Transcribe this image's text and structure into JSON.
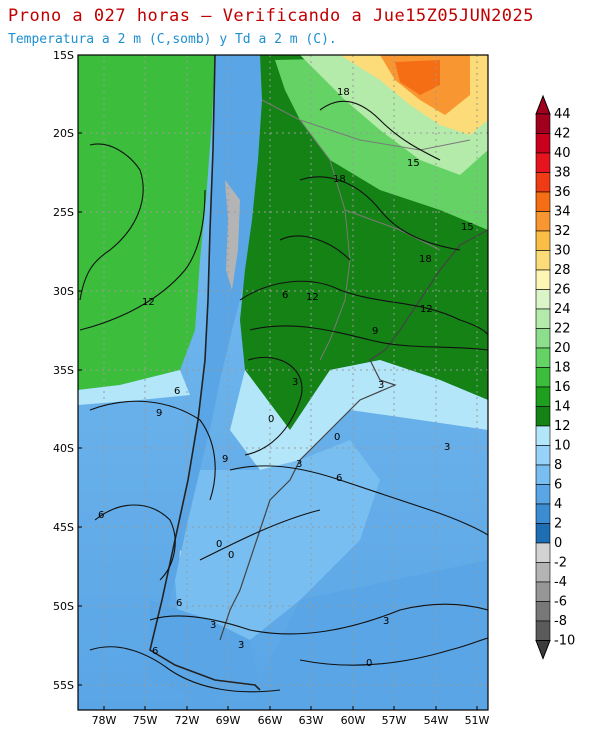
{
  "title": "Prono a 027 horas — Verificando a Jue15Z05JUN2025",
  "subtitle": "Temperatura a 2 m (C,somb) y Td a 2 m (C).",
  "lat_ticks": [
    "15S",
    "20S",
    "25S",
    "30S",
    "35S",
    "40S",
    "45S",
    "50S",
    "55S"
  ],
  "lon_ticks": [
    "78W",
    "75W",
    "72W",
    "69W",
    "66W",
    "63W",
    "60W",
    "57W",
    "54W",
    "51W"
  ],
  "colorbar": {
    "labels": [
      "44",
      "42",
      "40",
      "38",
      "36",
      "34",
      "32",
      "30",
      "28",
      "26",
      "24",
      "22",
      "20",
      "18",
      "16",
      "14",
      "12",
      "10",
      "8",
      "6",
      "4",
      "2",
      "0",
      "-2",
      "-4",
      "-6",
      "-8",
      "-10"
    ],
    "colors": [
      "#a0001e",
      "#c8001e",
      "#e6141e",
      "#f03c14",
      "#f56e14",
      "#f89632",
      "#fabe46",
      "#fcdc78",
      "#fff5b4",
      "#dcf5c8",
      "#b4ebaa",
      "#8cde8c",
      "#64d264",
      "#3cbe3c",
      "#1ea01e",
      "#148214",
      "#b4e6fa",
      "#96d2fa",
      "#78bef0",
      "#5aa5e6",
      "#3c8cd2",
      "#1e6eb4",
      "#d2d2d2",
      "#b4b4b4",
      "#969696",
      "#787878",
      "#5a5a5a"
    ]
  },
  "contour_labels": [
    "18",
    "15",
    "18",
    "15",
    "18",
    "12",
    "12",
    "12",
    "9",
    "6",
    "3",
    "6",
    "9",
    "3",
    "0",
    "3",
    "6",
    "9",
    "0",
    "6",
    "0",
    "3",
    "3",
    "0",
    "3",
    "0",
    "6",
    "6",
    "3"
  ]
}
